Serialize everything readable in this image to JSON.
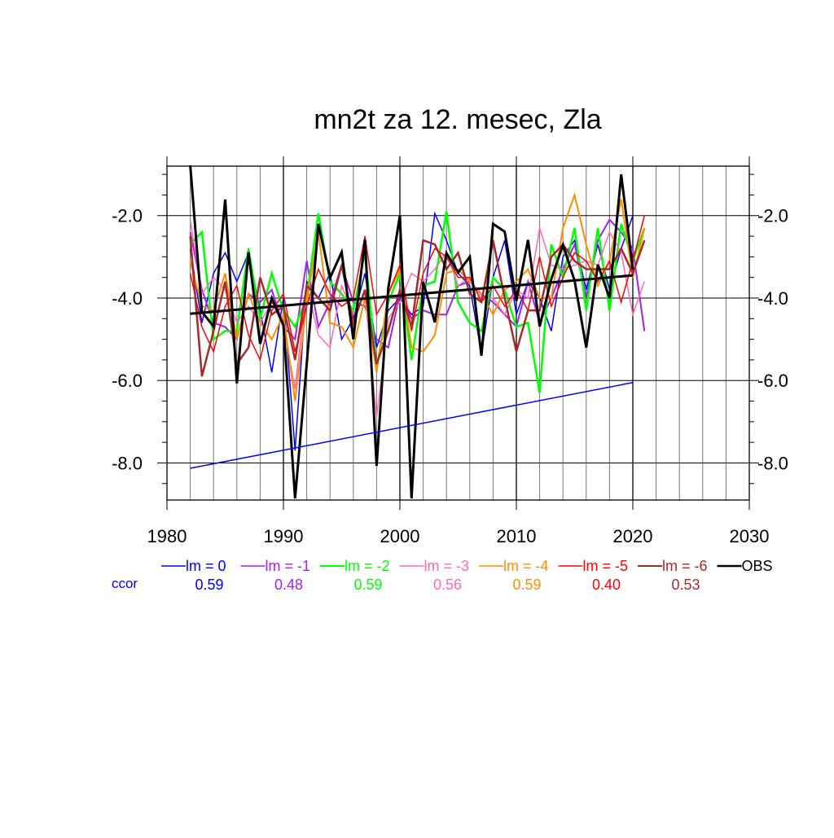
{
  "chart_data": {
    "type": "line",
    "title": "mn2t za 12. mesec, Zla",
    "xlabel": "",
    "ylabel": "",
    "xlim": [
      1980,
      2030
    ],
    "ylim": [
      -8.9,
      -0.8
    ],
    "xticks": [
      1980,
      1990,
      2000,
      2010,
      2020,
      2030
    ],
    "yticks": [
      -2.0,
      -4.0,
      -6.0,
      -8.0
    ],
    "grid": true,
    "ccor_label": "ccor",
    "legend_position": "bottom",
    "series": [
      {
        "name": "lm = 0",
        "color": "#0000ff",
        "width": 1.5,
        "ccor": "0.59",
        "start": 1982,
        "values": [
          -2.8,
          -4.6,
          -3.4,
          -2.9,
          -3.6,
          -2.9,
          -4.3,
          -5.8,
          -4.0,
          -7.7,
          -3.6,
          -4.0,
          -3.4,
          -5.0,
          -4.5,
          -3.4,
          -5.2,
          -4.3,
          -4.0,
          -4.4,
          -4.2,
          -1.95,
          -2.6,
          -3.4,
          -3.7,
          -5.35,
          -3.5,
          -2.6,
          -4.4,
          -3.6,
          -4.0,
          -4.8,
          -3.0,
          -2.6,
          -3.8,
          -2.7,
          -3.8,
          -2.8,
          -2.0
        ]
      },
      {
        "name": "lm = -1",
        "color": "#a020f0",
        "width": 2,
        "ccor": "0.48",
        "start": 1982,
        "values": [
          -2.4,
          -3.8,
          -4.6,
          -4.7,
          -5.0,
          -3.9,
          -4.1,
          -3.8,
          -4.7,
          -5.0,
          -3.1,
          -4.7,
          -4.1,
          -3.2,
          -4.1,
          -4.2,
          -5.0,
          -5.2,
          -3.9,
          -4.5,
          -4.3,
          -4.4,
          -4.4,
          -3.7,
          -3.6,
          -3.9,
          -4.1,
          -4.4,
          -4.7,
          -3.6,
          -4.6,
          -4.0,
          -3.3,
          -2.7,
          -4.0,
          -2.6,
          -2.1,
          -2.4,
          -2.8,
          -4.8
        ]
      },
      {
        "name": "lm = -2",
        "color": "#00ff00",
        "width": 2.5,
        "ccor": "0.59",
        "start": 1982,
        "values": [
          -2.7,
          -2.4,
          -5.0,
          -4.8,
          -4.8,
          -2.8,
          -4.5,
          -3.4,
          -4.3,
          -4.7,
          -4.0,
          -1.95,
          -3.6,
          -3.9,
          -4.3,
          -2.9,
          -5.7,
          -4.1,
          -3.4,
          -5.5,
          -3.7,
          -3.6,
          -1.9,
          -4.1,
          -4.6,
          -4.8,
          -3.5,
          -3.8,
          -4.7,
          -4.6,
          -6.3,
          -2.7,
          -3.5,
          -2.3,
          -4.3,
          -2.3,
          -4.3,
          -2.2,
          -3.1,
          -2.3
        ]
      },
      {
        "name": "lm = -3",
        "color": "#ff69b4",
        "width": 1.5,
        "ccor": "0.56",
        "start": 1982,
        "values": [
          -2.1,
          -3.9,
          -3.5,
          -3.8,
          -4.6,
          -4.2,
          -4.6,
          -4.1,
          -4.7,
          -6.2,
          -3.7,
          -4.9,
          -5.2,
          -3.7,
          -4.4,
          -3.9,
          -6.9,
          -4.5,
          -4.1,
          -3.4,
          -3.6,
          -3.3,
          -2.9,
          -3.7,
          -3.5,
          -4.0,
          -4.0,
          -4.4,
          -3.8,
          -4.0,
          -2.3,
          -3.2,
          -3.3,
          -3.2,
          -3.1,
          -3.2,
          -2.4,
          -2.9,
          -4.4,
          -3.6
        ]
      },
      {
        "name": "lm = -4",
        "color": "#ff8c00",
        "width": 2,
        "ccor": "0.59",
        "start": 1982,
        "values": [
          -3.1,
          -4.2,
          -4.3,
          -3.4,
          -5.0,
          -3.9,
          -4.6,
          -5.0,
          -4.4,
          -6.5,
          -4.1,
          -2.4,
          -4.6,
          -4.7,
          -5.2,
          -4.0,
          -5.8,
          -3.9,
          -3.3,
          -5.2,
          -5.3,
          -4.9,
          -3.4,
          -3.3,
          -3.6,
          -3.9,
          -4.4,
          -3.8,
          -3.6,
          -3.3,
          -4.0,
          -4.0,
          -2.3,
          -1.5,
          -2.7,
          -3.7,
          -3.1,
          -1.6,
          -3.5,
          -2.3
        ]
      },
      {
        "name": "lm = -5",
        "color": "#ff0000",
        "width": 1.5,
        "ccor": "0.40",
        "start": 1982,
        "values": [
          -3.4,
          -4.7,
          -5.3,
          -4.2,
          -3.7,
          -4.9,
          -5.5,
          -4.3,
          -3.9,
          -5.3,
          -4.2,
          -3.3,
          -3.9,
          -4.2,
          -4.0,
          -2.5,
          -4.4,
          -3.9,
          -3.2,
          -4.8,
          -3.4,
          -2.8,
          -3.0,
          -3.5,
          -3.5,
          -4.1,
          -3.7,
          -4.2,
          -3.8,
          -4.3,
          -3.0,
          -4.2,
          -3.5,
          -2.9,
          -3.1,
          -3.6,
          -3.1,
          -4.1,
          -3.1,
          -2.0
        ]
      },
      {
        "name": "lm = -6",
        "color": "#a52a2a",
        "width": 2.5,
        "ccor": "0.53",
        "start": 1982,
        "values": [
          -2.5,
          -5.9,
          -4.8,
          -3.6,
          -5.6,
          -5.2,
          -3.5,
          -4.4,
          -4.2,
          -5.5,
          -3.7,
          -4.0,
          -4.3,
          -3.2,
          -4.6,
          -3.8,
          -5.6,
          -4.8,
          -3.8,
          -4.7,
          -2.6,
          -2.7,
          -3.3,
          -2.9,
          -3.9,
          -4.1,
          -2.6,
          -4.0,
          -5.3,
          -4.3,
          -4.3,
          -3.0,
          -2.7,
          -3.1,
          -3.3,
          -3.3,
          -3.3,
          -2.8,
          -3.4,
          -2.6
        ]
      },
      {
        "name": "OBS",
        "color": "#000000",
        "width": 3,
        "start": 1982,
        "values": [
          -0.78,
          -4.33,
          -4.69,
          -1.61,
          -6.07,
          -2.89,
          -5.11,
          -4.0,
          -4.66,
          -8.86,
          -5.6,
          -2.2,
          -3.51,
          -2.89,
          -5.0,
          -2.59,
          -8.07,
          -3.77,
          -2.0,
          -8.86,
          -3.61,
          -4.59,
          -2.91,
          -3.38,
          -3.0,
          -5.4,
          -2.2,
          -2.39,
          -4.07,
          -2.59,
          -4.69,
          -3.54,
          -2.71,
          -3.58,
          -5.2,
          -3.19,
          -4.0,
          -1.0,
          -3.3
        ]
      }
    ],
    "trend_lines": [
      {
        "name": "OBS trend",
        "color": "#000000",
        "x": [
          1982,
          2020
        ],
        "y": [
          -4.38,
          -3.45
        ]
      },
      {
        "name": "lm = 0 trend",
        "color": "#0000ff",
        "x": [
          1982,
          2020
        ],
        "y": [
          -8.13,
          -6.05
        ]
      }
    ]
  }
}
